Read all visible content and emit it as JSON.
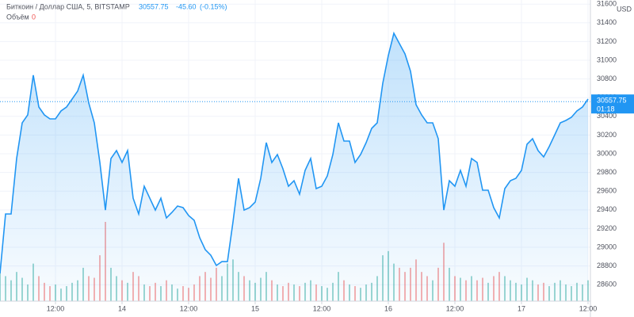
{
  "chart_data": {
    "type": "area",
    "title": "Биткоин / Доллар США, 5, BITSTAMP",
    "quote": {
      "price": 30557.75,
      "change": {
        "value": -45.6,
        "label": "-45.60"
      },
      "change_pct": {
        "value": -0.15,
        "label": "(-0.15%)"
      },
      "countdown": "01:18"
    },
    "currency": "USD",
    "x": [
      2,
      3,
      4,
      5,
      6,
      7,
      8,
      9,
      10,
      11,
      12,
      13,
      14,
      15,
      16,
      17,
      18,
      19,
      20,
      21,
      22,
      23,
      24,
      25,
      26,
      27,
      28,
      29,
      30,
      31,
      32,
      33,
      34,
      35,
      36,
      37,
      38,
      39,
      40,
      41,
      42,
      43,
      44,
      45,
      46,
      47,
      48,
      49,
      50,
      51,
      52,
      53,
      54,
      55,
      56,
      57,
      58,
      59,
      60,
      61,
      62,
      63,
      64,
      65,
      66,
      67,
      68,
      69,
      70,
      71,
      72,
      73,
      74,
      75,
      76,
      77,
      78,
      79,
      80,
      81,
      82,
      83,
      84,
      85,
      86,
      87,
      88,
      89,
      90,
      91,
      92,
      93,
      94,
      95,
      96,
      97,
      98,
      99,
      100,
      101,
      102,
      103,
      104,
      105,
      106,
      107,
      108
    ],
    "series": [
      {
        "name": "Биткоин / Доллар США",
        "color": "#2196f3",
        "values": [
          28720,
          29356,
          29356,
          29950,
          30330,
          30415,
          30840,
          30500,
          30415,
          30373,
          30373,
          30458,
          30500,
          30585,
          30670,
          30840,
          30542,
          30331,
          29907,
          29398,
          29949,
          30034,
          29907,
          30034,
          29525,
          29356,
          29653,
          29525,
          29398,
          29525,
          29314,
          29373,
          29441,
          29424,
          29339,
          29288,
          29102,
          28975,
          28915,
          28805,
          28847,
          28847,
          29271,
          29737,
          29398,
          29424,
          29483,
          29737,
          30119,
          29907,
          29992,
          29839,
          29653,
          29712,
          29568,
          29822,
          29949,
          29627,
          29653,
          29763,
          29992,
          30331,
          30136,
          30136,
          29907,
          29992,
          30119,
          30271,
          30331,
          30754,
          31051,
          31288,
          31178,
          31068,
          30881,
          30525,
          30415,
          30331,
          30331,
          30161,
          29398,
          29712,
          29653,
          29822,
          29653,
          29949,
          29907,
          29610,
          29610,
          29424,
          29314,
          29627,
          29712,
          29737,
          29822,
          30102,
          30161,
          30034,
          29966,
          30076,
          30203,
          30331,
          30356,
          30390,
          30458,
          30500,
          30585
        ]
      }
    ],
    "volume": {
      "name": "Объём",
      "value": 0,
      "up_color": "#26a69a",
      "down_color": "#ef5350",
      "values": [
        40,
        30,
        25,
        35,
        28,
        20,
        45,
        30,
        22,
        18,
        20,
        15,
        18,
        22,
        25,
        40,
        30,
        28,
        55,
        95,
        40,
        30,
        25,
        22,
        35,
        30,
        20,
        18,
        22,
        18,
        25,
        20,
        15,
        18,
        16,
        20,
        30,
        35,
        28,
        40,
        30,
        45,
        50,
        35,
        30,
        25,
        22,
        28,
        35,
        25,
        20,
        18,
        22,
        20,
        18,
        22,
        25,
        20,
        18,
        16,
        22,
        35,
        25,
        20,
        18,
        16,
        20,
        22,
        30,
        55,
        60,
        45,
        40,
        35,
        40,
        50,
        35,
        30,
        25,
        40,
        70,
        40,
        30,
        28,
        25,
        30,
        25,
        28,
        22,
        30,
        35,
        30,
        25,
        22,
        20,
        28,
        25,
        20,
        22,
        18,
        22,
        25,
        20,
        18,
        22,
        20,
        25
      ]
    },
    "xlim": [
      2,
      108.43
    ],
    "ylim": [
      28424,
      31644
    ],
    "xticks": [
      {
        "value": 12,
        "label": "12:00"
      },
      {
        "value": 24,
        "label": "14"
      },
      {
        "value": 36,
        "label": "12:00"
      },
      {
        "value": 48,
        "label": "15"
      },
      {
        "value": 60,
        "label": "12:00"
      },
      {
        "value": 72,
        "label": "16"
      },
      {
        "value": 84,
        "label": "12:00"
      },
      {
        "value": 96,
        "label": "17"
      },
      {
        "value": 108,
        "label": "12:00"
      }
    ],
    "yticks": [
      28600,
      28800,
      29000,
      29200,
      29400,
      29600,
      29800,
      30000,
      30200,
      30400,
      30600,
      30800,
      31000,
      31200,
      31400,
      31600
    ],
    "grid": true
  }
}
